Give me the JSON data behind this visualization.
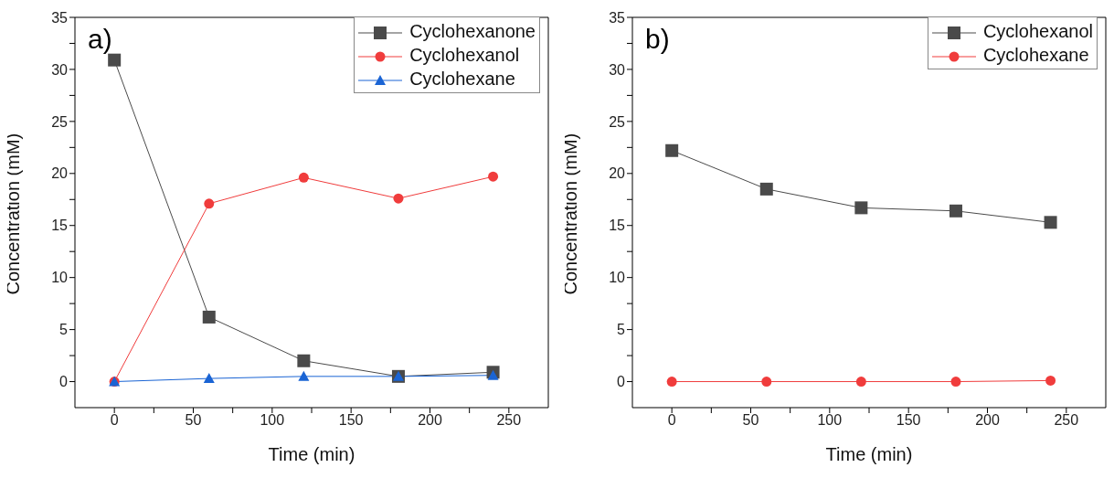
{
  "chart_data": [
    {
      "type": "line",
      "xlabel": "Time (min)",
      "ylabel": "Concentration (mM)",
      "annotations": [
        "a)"
      ],
      "x": [
        0,
        60,
        120,
        180,
        240
      ],
      "xlim": [
        -25,
        275
      ],
      "ylim": [
        -2.5,
        35
      ],
      "xticks": [
        0,
        {
          "value": 25,
          "label": null
        },
        50,
        {
          "value": 75,
          "label": null
        },
        100,
        {
          "value": 125,
          "label": null
        },
        150,
        {
          "value": 175,
          "label": null
        },
        200,
        {
          "value": 225,
          "label": null
        },
        250
      ],
      "yticks": [
        0,
        {
          "value": 2.5,
          "label": null
        },
        5,
        {
          "value": 7.5,
          "label": null
        },
        10,
        {
          "value": 12.5,
          "label": null
        },
        15,
        {
          "value": 17.5,
          "label": null
        },
        20,
        {
          "value": 22.5,
          "label": null
        },
        25,
        {
          "value": 27.5,
          "label": null
        },
        30,
        {
          "value": 32.5,
          "label": null
        },
        35
      ],
      "legend": "top right",
      "grid": false,
      "series": [
        {
          "name": "Cyclohexanone",
          "color": "#4a4a4a",
          "marker": "square",
          "values": [
            30.9,
            6.2,
            2,
            0.5,
            0.9
          ]
        },
        {
          "name": "Cyclohexanol",
          "color": "#f03c3c",
          "marker": "circle",
          "values": [
            0,
            17.1,
            19.6,
            17.6,
            19.7
          ]
        },
        {
          "name": "Cyclohexane",
          "color": "#1a64d4",
          "marker": "triangle",
          "values": [
            0,
            0.3,
            0.5,
            0.5,
            0.6
          ]
        }
      ]
    },
    {
      "type": "line",
      "xlabel": "Time (min)",
      "ylabel": "Concentration (mM)",
      "annotations": [
        "b)"
      ],
      "x": [
        0,
        60,
        120,
        180,
        240
      ],
      "xlim": [
        -25,
        275
      ],
      "ylim": [
        -2.5,
        35
      ],
      "xticks": [
        0,
        {
          "value": 25,
          "label": null
        },
        50,
        {
          "value": 75,
          "label": null
        },
        100,
        {
          "value": 125,
          "label": null
        },
        150,
        {
          "value": 175,
          "label": null
        },
        200,
        {
          "value": 225,
          "label": null
        },
        250
      ],
      "yticks": [
        0,
        {
          "value": 2.5,
          "label": null
        },
        5,
        {
          "value": 7.5,
          "label": null
        },
        10,
        {
          "value": 12.5,
          "label": null
        },
        15,
        {
          "value": 17.5,
          "label": null
        },
        20,
        {
          "value": 22.5,
          "label": null
        },
        25,
        {
          "value": 27.5,
          "label": null
        },
        30,
        {
          "value": 32.5,
          "label": null
        },
        35
      ],
      "legend": "top right",
      "grid": false,
      "series": [
        {
          "name": "Cyclohexanol",
          "color": "#4a4a4a",
          "marker": "square",
          "values": [
            22.2,
            18.5,
            16.7,
            16.4,
            15.3
          ]
        },
        {
          "name": "Cyclohexane",
          "color": "#f03c3c",
          "marker": "circle",
          "values": [
            0,
            0,
            0,
            0,
            0.1
          ]
        }
      ]
    }
  ]
}
